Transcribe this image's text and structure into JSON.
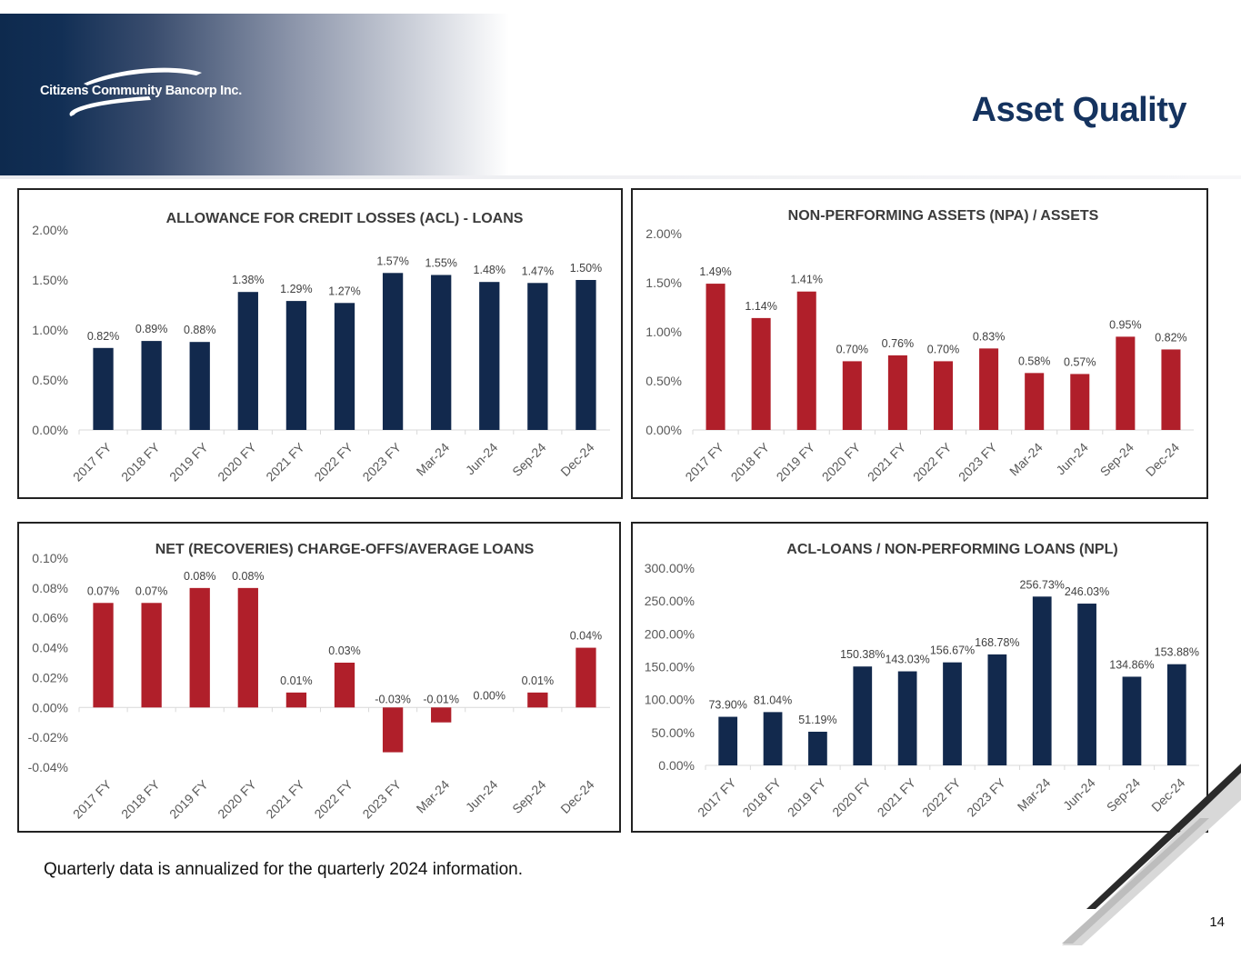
{
  "header": {
    "company": "Citizens Community Bancorp Inc.",
    "title": "Asset Quality"
  },
  "colors": {
    "navy": "#12294d",
    "red": "#b01f2a",
    "title": "#15335f",
    "axis_text": "#595959"
  },
  "chart_data": [
    {
      "type": "bar",
      "title": "ALLOWANCE FOR CREDIT LOSSES (ACL) - LOANS",
      "categories": [
        "2017 FY",
        "2018 FY",
        "2019 FY",
        "2020 FY",
        "2021 FY",
        "2022 FY",
        "2023 FY",
        "Mar-24",
        "Jun-24",
        "Sep-24",
        "Dec-24"
      ],
      "values": [
        0.82,
        0.89,
        0.88,
        1.38,
        1.29,
        1.27,
        1.57,
        1.55,
        1.48,
        1.47,
        1.5
      ],
      "labels": [
        "0.82%",
        "0.89%",
        "0.88%",
        "1.38%",
        "1.29%",
        "1.27%",
        "1.57%",
        "1.55%",
        "1.48%",
        "1.47%",
        "1.50%"
      ],
      "yticks": [
        "0.00%",
        "0.50%",
        "1.00%",
        "1.50%",
        "2.00%"
      ],
      "ylim": [
        0,
        2
      ],
      "color": "#12294d"
    },
    {
      "type": "bar",
      "title": "NON-PERFORMING ASSETS (NPA)  / ASSETS",
      "categories": [
        "2017 FY",
        "2018 FY",
        "2019 FY",
        "2020 FY",
        "2021 FY",
        "2022 FY",
        "2023 FY",
        "Mar-24",
        "Jun-24",
        "Sep-24",
        "Dec-24"
      ],
      "values": [
        1.49,
        1.14,
        1.41,
        0.7,
        0.76,
        0.7,
        0.83,
        0.58,
        0.57,
        0.95,
        0.82
      ],
      "labels": [
        "1.49%",
        "1.14%",
        "1.41%",
        "0.70%",
        "0.76%",
        "0.70%",
        "0.83%",
        "0.58%",
        "0.57%",
        "0.95%",
        "0.82%"
      ],
      "yticks": [
        "0.00%",
        "0.50%",
        "1.00%",
        "1.50%",
        "2.00%"
      ],
      "ylim": [
        0,
        2
      ],
      "color": "#b01f2a"
    },
    {
      "type": "bar",
      "title": "NET (RECOVERIES) CHARGE-OFFS/AVERAGE LOANS",
      "categories": [
        "2017 FY",
        "2018 FY",
        "2019 FY",
        "2020 FY",
        "2021 FY",
        "2022 FY",
        "2023 FY",
        "Mar-24",
        "Jun-24",
        "Sep-24",
        "Dec-24"
      ],
      "values": [
        0.07,
        0.07,
        0.08,
        0.08,
        0.01,
        0.03,
        -0.03,
        -0.01,
        0.0,
        0.01,
        0.04
      ],
      "labels": [
        "0.07%",
        "0.07%",
        "0.08%",
        "0.08%",
        "0.01%",
        "0.03%",
        "-0.03%",
        "-0.01%",
        "0.00%",
        "0.01%",
        "0.04%"
      ],
      "yticks": [
        "-0.04%",
        "-0.02%",
        "0.00%",
        "0.02%",
        "0.04%",
        "0.06%",
        "0.08%",
        "0.10%"
      ],
      "ylim": [
        -0.04,
        0.1
      ],
      "color": "#b01f2a"
    },
    {
      "type": "bar",
      "title": "ACL-LOANS / NON-PERFORMING LOANS (NPL)",
      "categories": [
        "2017 FY",
        "2018 FY",
        "2019 FY",
        "2020 FY",
        "2021 FY",
        "2022 FY",
        "2023 FY",
        "Mar-24",
        "Jun-24",
        "Sep-24",
        "Dec-24"
      ],
      "values": [
        73.9,
        81.04,
        51.19,
        150.38,
        143.03,
        156.67,
        168.78,
        256.73,
        246.03,
        134.86,
        153.88
      ],
      "labels": [
        "73.90%",
        "81.04%",
        "51.19%",
        "150.38%",
        "143.03%",
        "156.67%",
        "168.78%",
        "256.73%",
        "246.03%",
        "134.86%",
        "153.88%"
      ],
      "yticks": [
        "0.00%",
        "50.00%",
        "100.00%",
        "150.00%",
        "200.00%",
        "250.00%",
        "300.00%"
      ],
      "ylim": [
        0,
        300
      ],
      "color": "#12294d"
    }
  ],
  "footnote": "Quarterly data is annualized for the quarterly 2024 information.",
  "page_number": "14"
}
